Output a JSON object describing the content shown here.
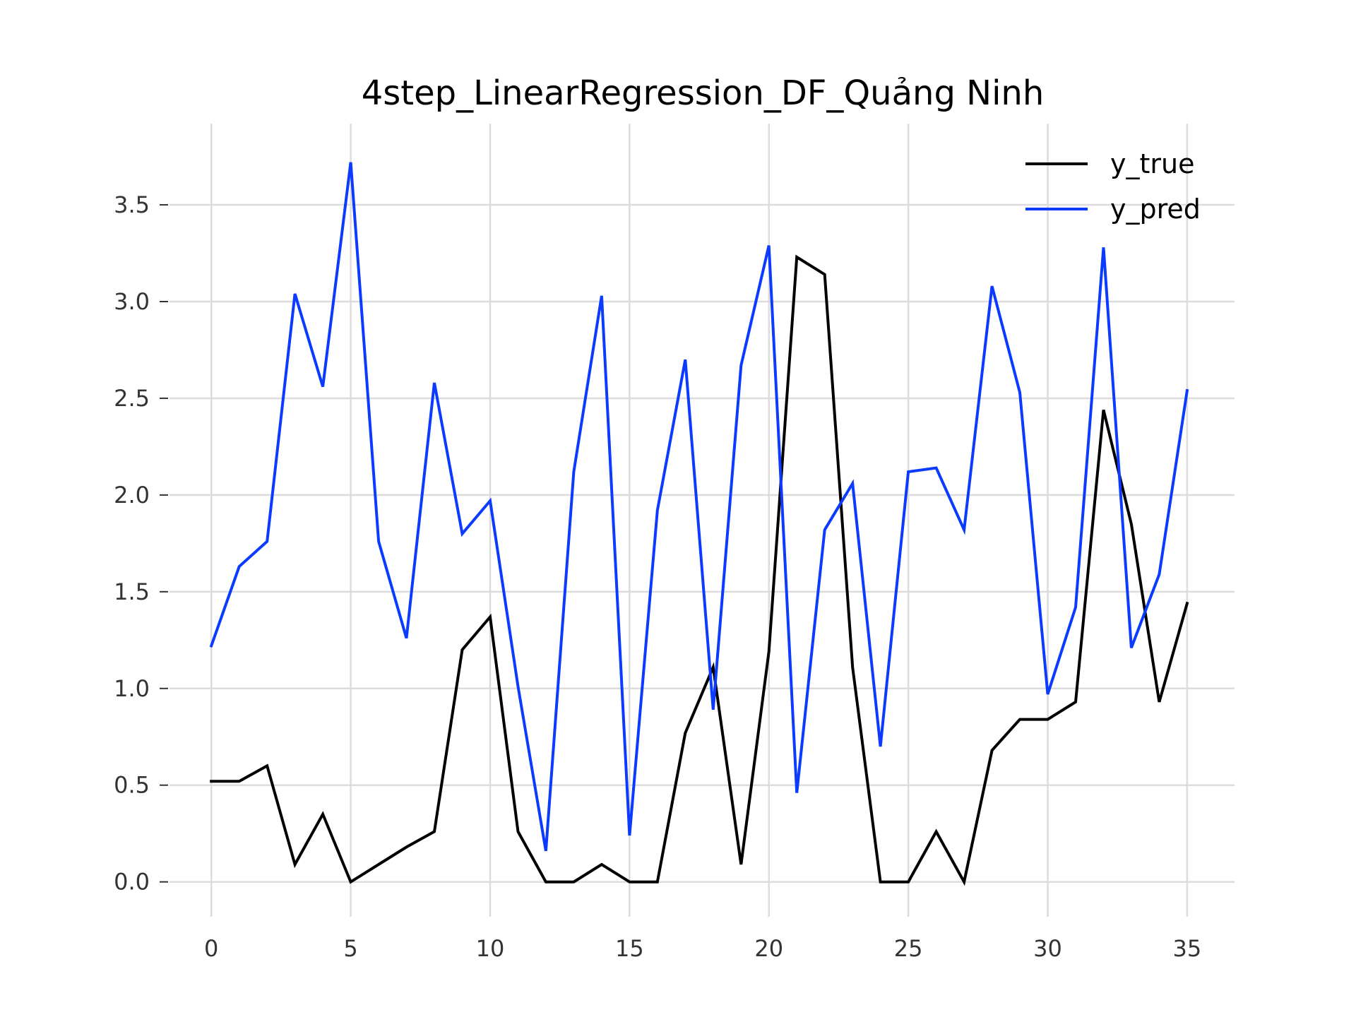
{
  "chart_data": {
    "type": "line",
    "title": "4step_LinearRegression_DF_Quảng Ninh",
    "xlabel": "",
    "ylabel": "",
    "xlim": [
      -1.5,
      36.7
    ],
    "ylim": [
      -0.18,
      3.92
    ],
    "xticks": [
      0,
      5,
      10,
      15,
      20,
      25,
      30,
      35
    ],
    "yticks": [
      0.0,
      0.5,
      1.0,
      1.5,
      2.0,
      2.5,
      3.0,
      3.5
    ],
    "xtick_labels": [
      "0",
      "5",
      "10",
      "15",
      "20",
      "25",
      "30",
      "35"
    ],
    "ytick_labels": [
      "0.0",
      "0.5",
      "1.0",
      "1.5",
      "2.0",
      "2.5",
      "3.0",
      "3.5"
    ],
    "grid": true,
    "legend_position": "top-right",
    "x": [
      0,
      1,
      2,
      3,
      4,
      5,
      6,
      7,
      8,
      9,
      10,
      11,
      12,
      13,
      14,
      15,
      16,
      17,
      18,
      19,
      20,
      21,
      22,
      23,
      24,
      25,
      26,
      27,
      28,
      29,
      30,
      31,
      32,
      33,
      34,
      35
    ],
    "series": [
      {
        "name": "y_true",
        "color": "#000000",
        "values": [
          0.52,
          0.52,
          0.6,
          0.09,
          0.35,
          0.0,
          0.09,
          0.18,
          0.26,
          1.2,
          1.37,
          0.26,
          0.0,
          0.0,
          0.09,
          0.0,
          0.0,
          0.77,
          1.11,
          0.09,
          1.19,
          3.23,
          3.14,
          1.11,
          0.0,
          0.0,
          0.26,
          0.0,
          0.68,
          0.84,
          0.84,
          0.93,
          2.44,
          1.85,
          0.93,
          1.44
        ]
      },
      {
        "name": "y_pred",
        "color": "#0a3bff",
        "values": [
          1.22,
          1.63,
          1.76,
          3.04,
          2.56,
          3.72,
          1.76,
          1.26,
          2.58,
          1.8,
          1.97,
          1.01,
          0.16,
          2.12,
          3.03,
          0.24,
          1.92,
          2.7,
          0.89,
          2.67,
          3.29,
          0.46,
          1.82,
          2.06,
          0.7,
          2.12,
          2.14,
          1.82,
          3.08,
          2.53,
          0.97,
          1.42,
          3.28,
          1.21,
          1.59,
          2.54
        ]
      }
    ]
  }
}
